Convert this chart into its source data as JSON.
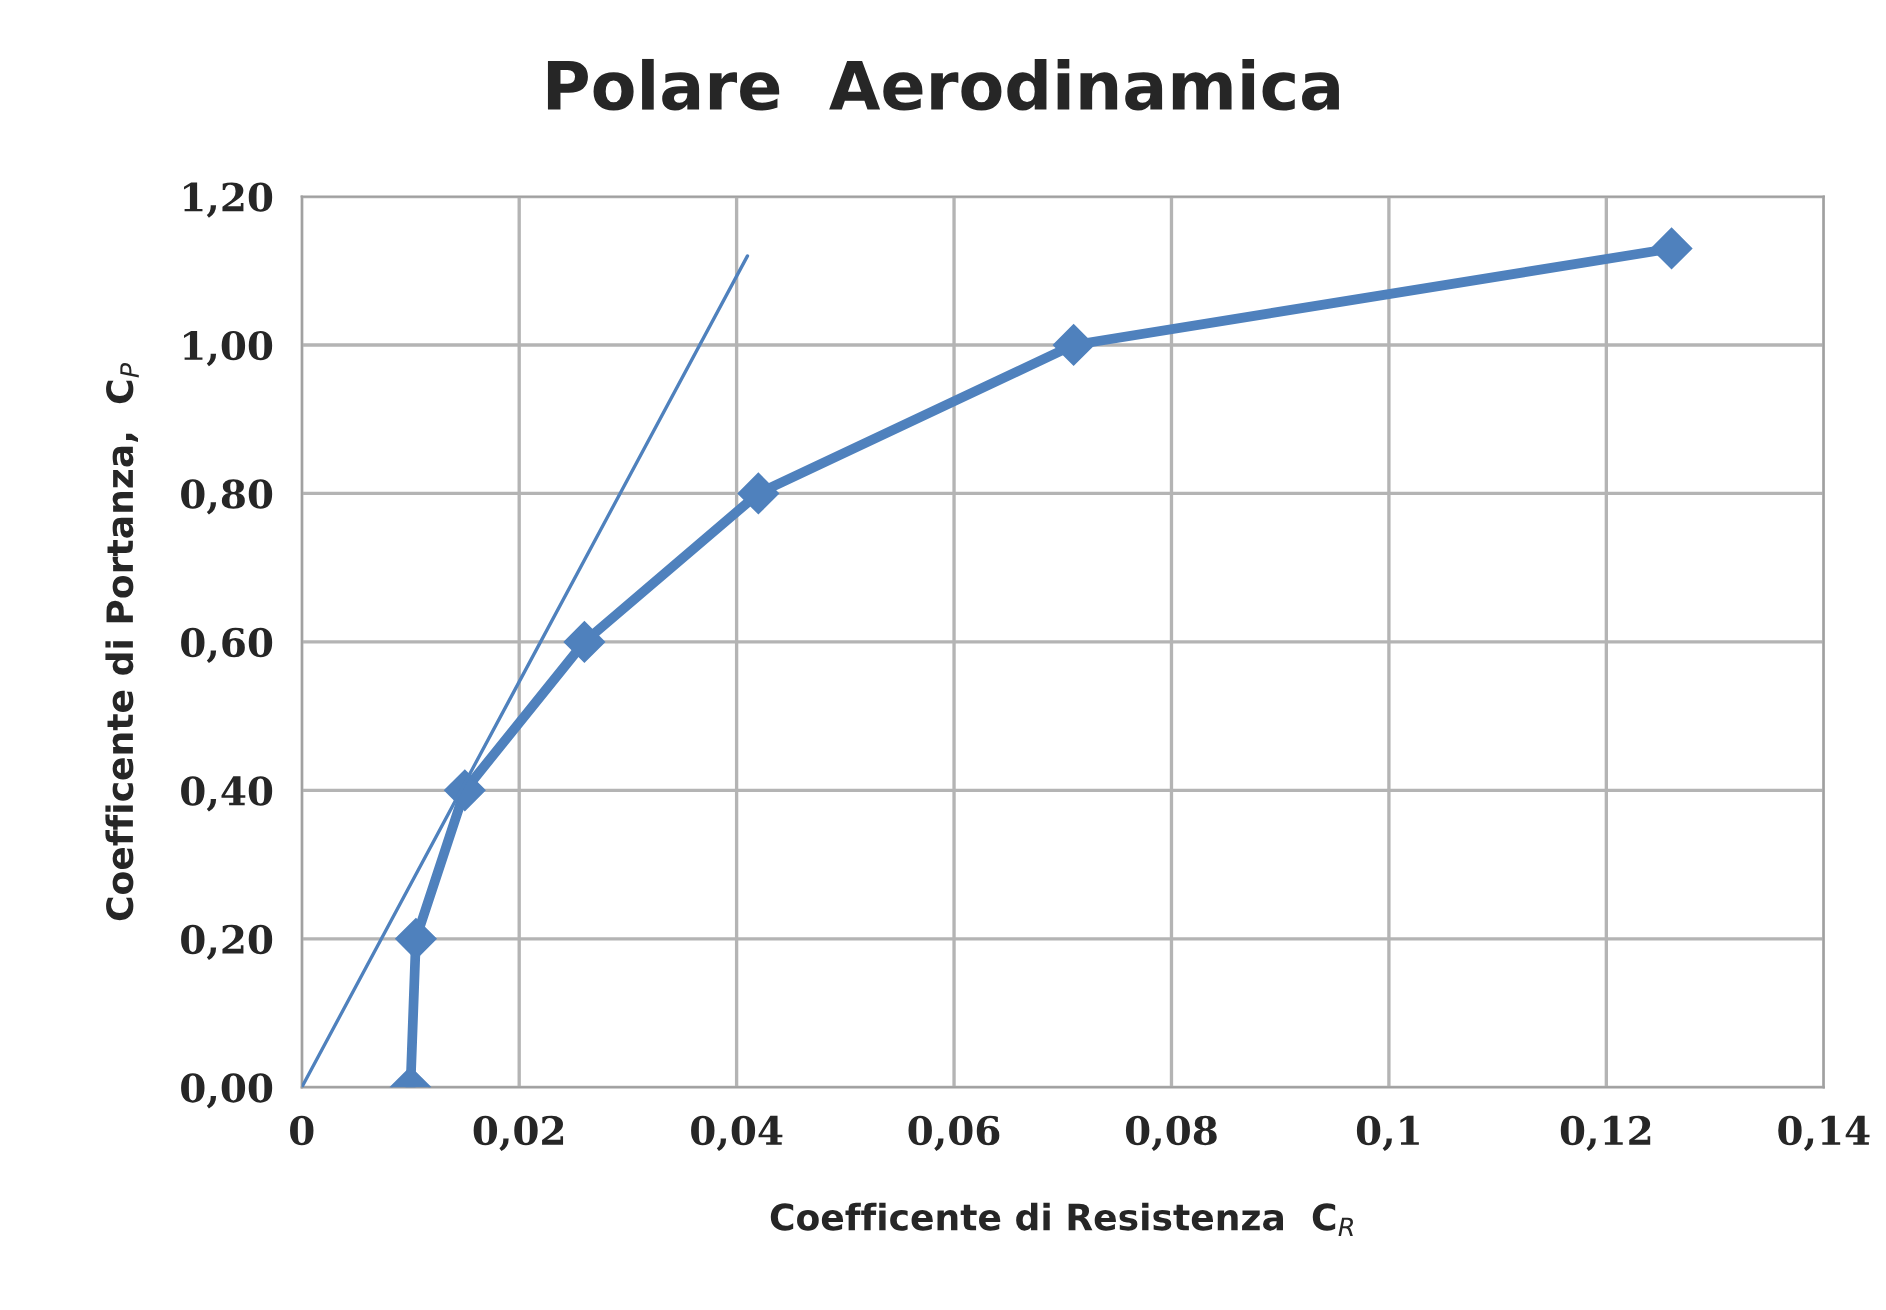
{
  "chart_data": {
    "type": "line",
    "title": "Polare  Aerodinamica",
    "xlabel": "Coefficente di Resistenza  C$_{R}$",
    "ylabel": "Coefficente di Portanza,  C$_{P}$",
    "series": [
      {
        "color": "#4f81bd",
        "x": [
          0.01,
          0.0105,
          0.015,
          0.026,
          0.042,
          0.071,
          0.126
        ],
        "values": [
          0.0,
          0.2,
          0.4,
          0.6,
          0.8,
          1.0,
          1.13
        ],
        "marker": "diamond",
        "line_style": "solid"
      },
      {
        "color": "#4f81bd",
        "x": [
          0.0,
          0.041
        ],
        "values": [
          0.0,
          1.12
        ],
        "marker": "none",
        "line_style": "solid"
      }
    ],
    "xlim": [
      0,
      0.14
    ],
    "ylim": [
      0,
      1.2
    ],
    "xticks": [
      {
        "value": 0,
        "label": "0"
      },
      {
        "value": 0.02,
        "label": "0,02"
      },
      {
        "value": 0.04,
        "label": "0,04"
      },
      {
        "value": 0.06,
        "label": "0,06"
      },
      {
        "value": 0.08,
        "label": "0,08"
      },
      {
        "value": 0.1,
        "label": "0,1"
      },
      {
        "value": 0.12,
        "label": "0,12"
      },
      {
        "value": 0.14,
        "label": "0,14"
      }
    ],
    "yticks": [
      {
        "value": 0,
        "label": "0,00"
      },
      {
        "value": 0.2,
        "label": "0,20"
      },
      {
        "value": 0.4,
        "label": "0,40"
      },
      {
        "value": 0.6,
        "label": "0,60"
      },
      {
        "value": 0.8,
        "label": "0,80"
      },
      {
        "value": 1.0,
        "label": "1,00"
      },
      {
        "value": 1.2,
        "label": "1,20"
      }
    ],
    "grid": true
  }
}
